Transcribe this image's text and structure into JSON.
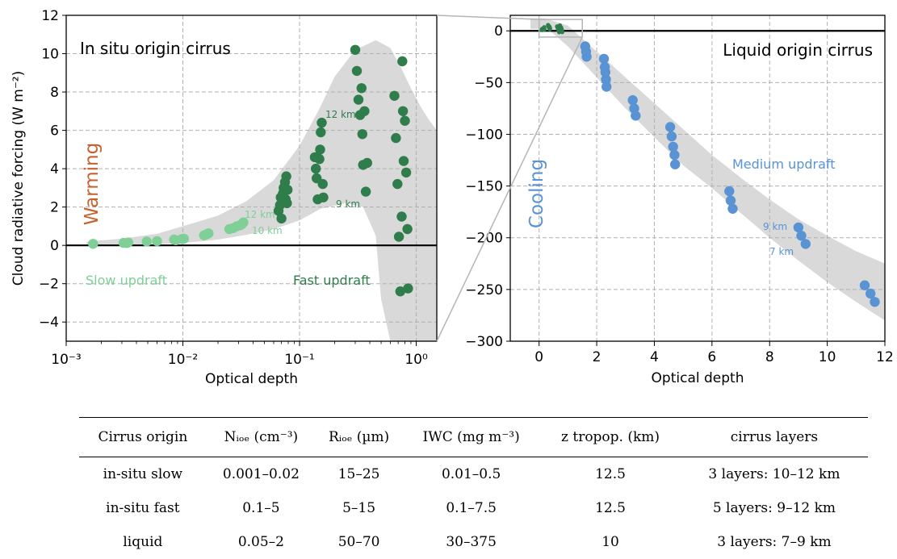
{
  "figure": {
    "ylabel": "Cloud radiative forcing (W m⁻²)",
    "colors": {
      "slow": "#7fcf97",
      "fast": "#2e7d4a",
      "liquid": "#5a93d4",
      "warming": "#c8602e",
      "band": "#d9d9d9"
    },
    "left_panel": {
      "title": "In situ origin cirrus",
      "xlabel": "Optical depth",
      "xticks": [
        "10⁻³",
        "10⁻²",
        "10⁻¹",
        "10⁰"
      ],
      "yticks": [
        "−4",
        "−2",
        "0",
        "2",
        "4",
        "6",
        "8",
        "10",
        "12"
      ],
      "side_label": "Warming",
      "slow_label": "Slow updraft",
      "fast_label": "Fast updraft",
      "annotations": [
        "12 km",
        "10 km",
        "12 km",
        "9 km"
      ]
    },
    "right_panel": {
      "title": "Liquid origin cirrus",
      "xlabel": "Optical depth",
      "xticks": [
        "0",
        "2",
        "4",
        "6",
        "8",
        "10",
        "12"
      ],
      "yticks": [
        "−300",
        "−250",
        "−200",
        "−150",
        "−100",
        "−50",
        "0"
      ],
      "side_label": "Cooling",
      "medium_label": "Medium updraft",
      "annotations": [
        "9 km",
        "7 km"
      ]
    }
  },
  "chart_data": [
    {
      "type": "scatter",
      "title": "In situ origin cirrus",
      "xlabel": "Optical depth",
      "ylabel": "Cloud radiative forcing (W m⁻²)",
      "xscale": "log",
      "xlim": [
        0.001,
        1.5
      ],
      "ylim": [
        -5,
        12
      ],
      "grid": true,
      "series": [
        {
          "name": "Slow updraft",
          "x": [
            0.0017,
            0.0031,
            0.0033,
            0.0034,
            0.0049,
            0.006,
            0.0084,
            0.0087,
            0.0098,
            0.0102,
            0.0152,
            0.016,
            0.0166,
            0.025,
            0.027,
            0.029,
            0.031,
            0.032,
            0.033
          ],
          "y": [
            0.08,
            0.13,
            0.12,
            0.15,
            0.2,
            0.22,
            0.3,
            0.27,
            0.33,
            0.35,
            0.52,
            0.58,
            0.63,
            0.85,
            0.9,
            1.0,
            1.05,
            1.1,
            1.2
          ]
        },
        {
          "name": "Fast updraft",
          "x": [
            0.066,
            0.068,
            0.069,
            0.07,
            0.072,
            0.073,
            0.075,
            0.076,
            0.077,
            0.078,
            0.079,
            0.135,
            0.138,
            0.14,
            0.143,
            0.148,
            0.15,
            0.152,
            0.155,
            0.158,
            0.16,
            0.3,
            0.31,
            0.32,
            0.33,
            0.34,
            0.345,
            0.35,
            0.36,
            0.37,
            0.38,
            0.65,
            0.67,
            0.69,
            0.71,
            0.73,
            0.75,
            0.76,
            0.77,
            0.78,
            0.8,
            0.82,
            0.84,
            0.85
          ],
          "y": [
            1.8,
            2.1,
            2.5,
            1.4,
            2.7,
            3.0,
            3.3,
            2.4,
            3.6,
            2.2,
            2.9,
            4.6,
            4.0,
            3.5,
            2.4,
            4.5,
            5.0,
            5.9,
            6.4,
            3.2,
            2.5,
            10.2,
            9.1,
            7.6,
            6.8,
            8.2,
            5.8,
            4.2,
            7.0,
            2.8,
            4.3,
            7.8,
            5.6,
            3.2,
            0.45,
            -2.4,
            1.5,
            9.6,
            7.0,
            4.4,
            6.5,
            3.8,
            0.85,
            -2.25
          ]
        }
      ]
    },
    {
      "type": "scatter",
      "title": "Liquid origin cirrus",
      "xlabel": "Optical depth",
      "ylabel": "",
      "xlim": [
        -1,
        12
      ],
      "ylim": [
        -300,
        15
      ],
      "grid": true,
      "series": [
        {
          "name": "Medium updraft",
          "x": [
            1.6,
            1.63,
            1.65,
            2.25,
            2.28,
            2.3,
            2.32,
            2.34,
            3.25,
            3.3,
            3.35,
            4.55,
            4.6,
            4.65,
            4.7,
            4.72,
            6.6,
            6.65,
            6.72,
            9.0,
            9.1,
            9.25,
            11.3,
            11.5,
            11.65
          ],
          "y": [
            -15,
            -20,
            -25,
            -27,
            -35,
            -40,
            -47,
            -54,
            -67,
            -75,
            -82,
            -93,
            -102,
            -112,
            -120,
            -129,
            -155,
            -164,
            -172,
            -190,
            -198,
            -206,
            -246,
            -254,
            -262
          ]
        }
      ]
    }
  ],
  "table": {
    "headers": [
      "Cirrus origin",
      "Nᵢₒₑ (cm⁻³)",
      "Rᵢₒₑ (µm)",
      "IWC (mg m⁻³)",
      "z tropop. (km)",
      "cirrus layers"
    ],
    "rows": [
      [
        "in-situ slow",
        "0.001–0.02",
        "15–25",
        "0.01–0.5",
        "12.5",
        "3 layers: 10–12 km"
      ],
      [
        "in-situ fast",
        "0.1–5",
        "5–15",
        "0.1–7.5",
        "12.5",
        "5 layers: 9–12 km"
      ],
      [
        "liquid",
        "0.05–2",
        "50–70",
        "30–375",
        "10",
        "3 layers: 7–9 km"
      ]
    ]
  }
}
